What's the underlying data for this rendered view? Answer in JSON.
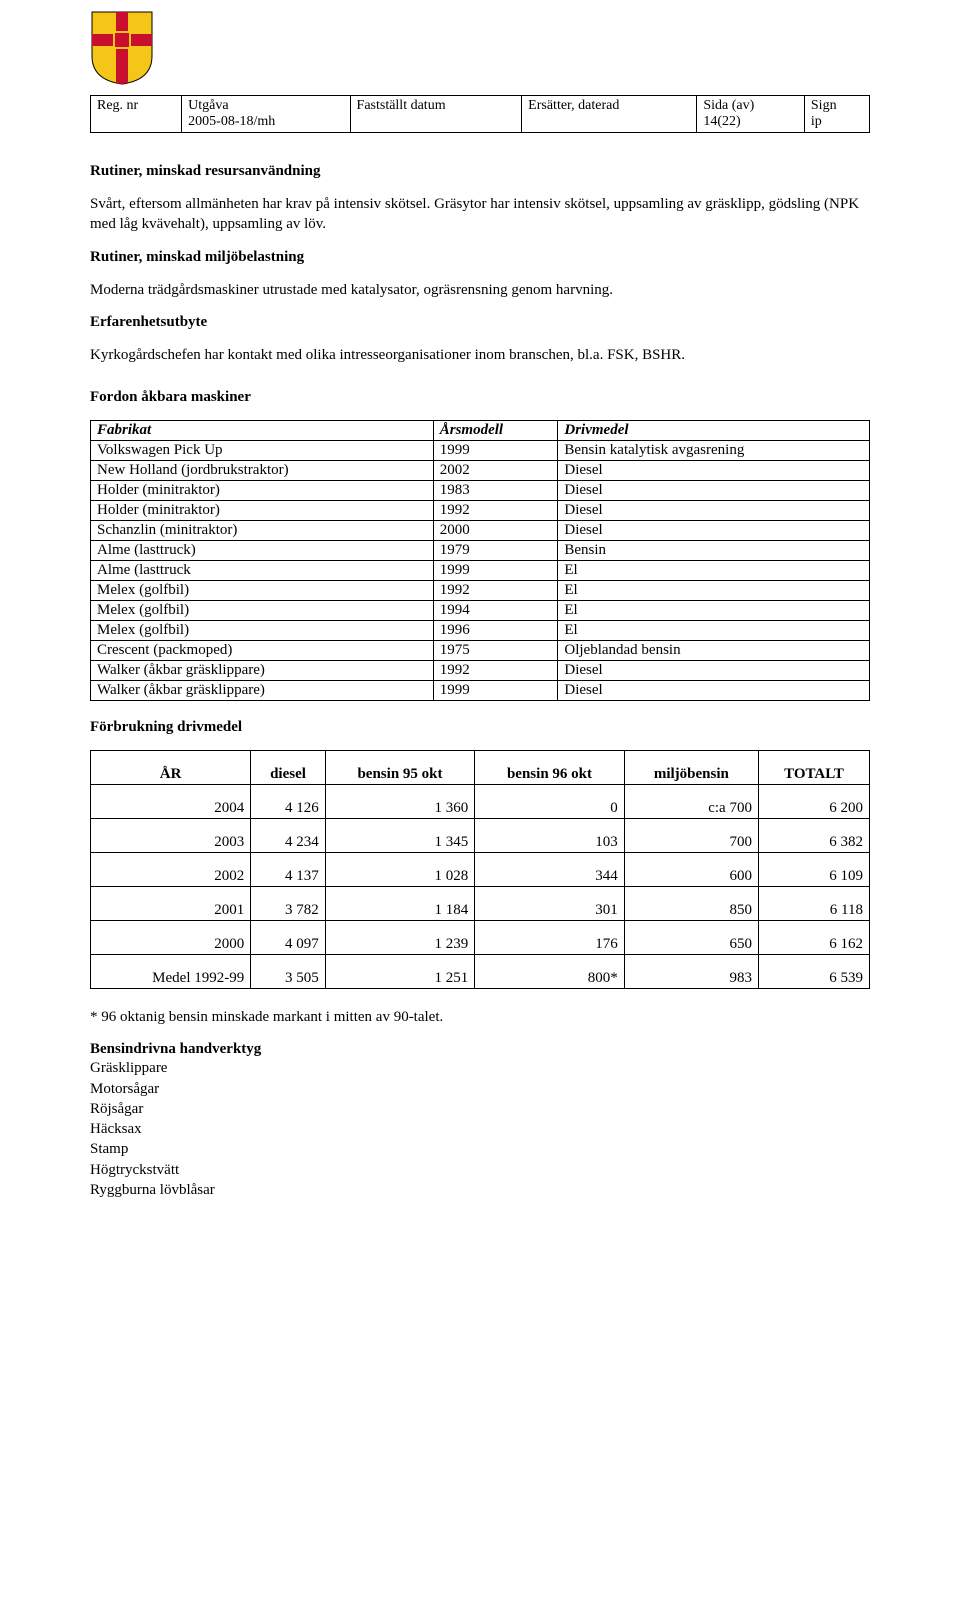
{
  "crest": {
    "bg": "#f5c518",
    "cross": "#c8102e",
    "inner": "#c8102e",
    "inner_border": "#f5c518"
  },
  "header": {
    "cols": [
      {
        "label": "Reg. nr",
        "val": ""
      },
      {
        "label": "Utgåva",
        "val": "2005-08-18/mh"
      },
      {
        "label": "Fastställt datum",
        "val": ""
      },
      {
        "label": "Ersätter, daterad",
        "val": ""
      },
      {
        "label": "Sida (av)",
        "val": "14(22)"
      },
      {
        "label": "Sign",
        "val": "ip"
      }
    ]
  },
  "s1": {
    "title": "Rutiner, minskad resursanvändning",
    "p": "Svårt, eftersom allmänheten har krav på intensiv skötsel. Gräsytor har intensiv skötsel, uppsamling av gräsklipp, gödsling (NPK med låg kvävehalt), uppsamling av löv."
  },
  "s2": {
    "title": "Rutiner, minskad miljöbelastning",
    "p": "Moderna trädgårdsmaskiner utrustade med katalysator, ogräsrensning genom harvning."
  },
  "s3": {
    "title": "Erfarenhetsutbyte",
    "p": "Kyrkogårdschefen har kontakt med olika intresseorganisationer inom branschen, bl.a. FSK, BSHR."
  },
  "s4": {
    "title": "Fordon åkbara maskiner",
    "cols": [
      "Fabrikat",
      "Årsmodell",
      "Drivmedel"
    ],
    "rows": [
      [
        "Volkswagen Pick Up",
        "1999",
        "Bensin katalytisk avgasrening"
      ],
      [
        "New Holland (jordbrukstraktor)",
        "2002",
        "Diesel"
      ],
      [
        "Holder (minitraktor)",
        "1983",
        "Diesel"
      ],
      [
        "Holder (minitraktor)",
        "1992",
        "Diesel"
      ],
      [
        "Schanzlin (minitraktor)",
        "2000",
        "Diesel"
      ],
      [
        "Alme (lasttruck)",
        "1979",
        "Bensin"
      ],
      [
        "Alme (lasttruck",
        "1999",
        "El"
      ],
      [
        "Melex (golfbil)",
        "1992",
        "El"
      ],
      [
        "Melex (golfbil)",
        "1994",
        "El"
      ],
      [
        "Melex (golfbil)",
        "1996",
        "El"
      ],
      [
        "Crescent (packmoped)",
        "1975",
        "Oljeblandad bensin"
      ],
      [
        "Walker (åkbar gräsklippare)",
        "1992",
        "Diesel"
      ],
      [
        "Walker (åkbar gräsklippare)",
        "1999",
        "Diesel"
      ]
    ]
  },
  "s5": {
    "title": "Förbrukning drivmedel",
    "cols": [
      "ÅR",
      "diesel",
      "bensin 95 okt",
      "bensin 96 okt",
      "miljöbensin",
      "TOTALT"
    ],
    "rows": [
      [
        "2004",
        "4 126",
        "1 360",
        "0",
        "c:a 700",
        "6 200"
      ],
      [
        "2003",
        "4 234",
        "1 345",
        "103",
        "700",
        "6 382"
      ],
      [
        "2002",
        "4 137",
        "1 028",
        "344",
        "600",
        "6 109"
      ],
      [
        "2001",
        "3 782",
        "1 184",
        "301",
        "850",
        "6 118"
      ],
      [
        "2000",
        "4 097",
        "1 239",
        "176",
        "650",
        "6 162"
      ],
      [
        "Medel 1992-99",
        "3 505",
        "1 251",
        "800*",
        "983",
        "6 539"
      ]
    ]
  },
  "footnote": "* 96 oktanig bensin minskade markant i mitten av 90-talet.",
  "s6": {
    "title": "Bensindrivna handverktyg",
    "items": [
      "Gräsklippare",
      "Motorsågar",
      "Röjsågar",
      "Häcksax",
      "Stamp",
      "Högtryckstvätt",
      "Ryggburna lövblåsar"
    ]
  }
}
